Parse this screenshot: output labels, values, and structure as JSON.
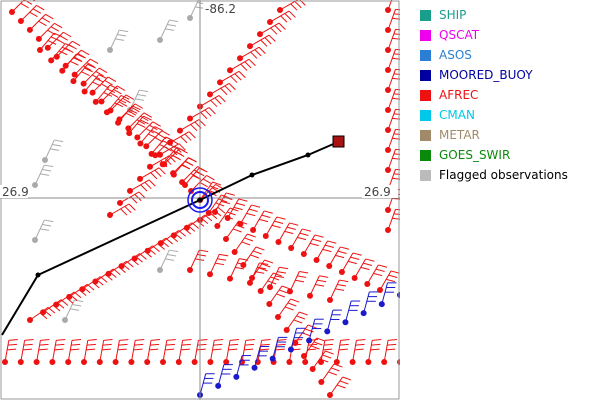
{
  "map": {
    "lon_label": "-86.2",
    "lat_label_left": "26.9",
    "lat_label_right": "26.9"
  },
  "legend": {
    "items": [
      {
        "label": "SHIP",
        "color": "#1a9e8c"
      },
      {
        "label": "QSCAT",
        "color": "#ee00ee"
      },
      {
        "label": "ASOS",
        "color": "#2a7fd4"
      },
      {
        "label": "MOORED_BUOY",
        "color": "#0000a0"
      },
      {
        "label": "AFREC",
        "color": "#ee1111"
      },
      {
        "label": "CMAN",
        "color": "#00c8e8"
      },
      {
        "label": "METAR",
        "color": "#a08a6a"
      },
      {
        "label": "GOES_SWIR",
        "color": "#0a8a0a"
      },
      {
        "label": "Flagged observations",
        "color": "#bbbbbb"
      }
    ]
  },
  "colors": {
    "afrec": "#ee1111",
    "buoy": "#1a1acc",
    "flagged": "#aaaaaa",
    "track": "#000000",
    "storm_center": "#1a1aee",
    "storm_end": "#aa1111"
  }
}
